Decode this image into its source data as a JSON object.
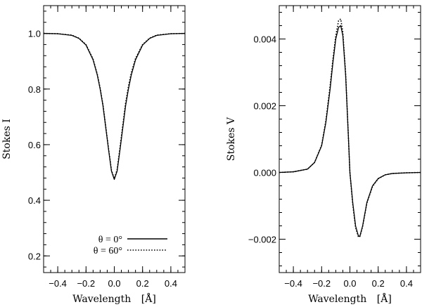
{
  "chart_data": [
    {
      "type": "line",
      "ylabel": "Stokes I",
      "xlabel": "Wavelength",
      "xlabel_unit": "[Å]",
      "xlim": [
        -0.5,
        0.5
      ],
      "ylim": [
        0.14,
        1.1
      ],
      "xticks": [
        -0.4,
        -0.2,
        0.0,
        0.2,
        0.4
      ],
      "xtick_labels": [
        "−0.4",
        "−0.2",
        "0.0",
        "0.2",
        "0.4"
      ],
      "yticks": [
        0.2,
        0.4,
        0.6,
        0.8,
        1.0
      ],
      "ytick_labels": [
        "0.2",
        "0.4",
        "0.6",
        "0.8",
        "1.0"
      ],
      "legend_position": "bottom-right",
      "series": [
        {
          "name": "θ = 0°",
          "style": "solid",
          "x": [
            -0.5,
            -0.4,
            -0.3,
            -0.25,
            -0.2,
            -0.15,
            -0.12,
            -0.1,
            -0.08,
            -0.06,
            -0.04,
            -0.02,
            0.0,
            0.02,
            0.04,
            0.06,
            0.08,
            0.1,
            0.12,
            0.15,
            0.2,
            0.25,
            0.3,
            0.4,
            0.5
          ],
          "values": [
            1.0,
            0.999,
            0.993,
            0.982,
            0.958,
            0.905,
            0.85,
            0.8,
            0.74,
            0.66,
            0.58,
            0.505,
            0.475,
            0.505,
            0.58,
            0.66,
            0.74,
            0.8,
            0.85,
            0.905,
            0.958,
            0.982,
            0.993,
            0.999,
            1.0
          ]
        },
        {
          "name": "θ = 60°",
          "style": "dotted",
          "x": [
            -0.5,
            -0.4,
            -0.3,
            -0.25,
            -0.2,
            -0.15,
            -0.12,
            -0.1,
            -0.08,
            -0.06,
            -0.04,
            -0.02,
            0.0,
            0.02,
            0.04,
            0.06,
            0.08,
            0.1,
            0.12,
            0.15,
            0.2,
            0.25,
            0.3,
            0.4,
            0.5
          ],
          "values": [
            1.0,
            0.999,
            0.994,
            0.983,
            0.96,
            0.908,
            0.853,
            0.803,
            0.743,
            0.663,
            0.583,
            0.508,
            0.478,
            0.51,
            0.588,
            0.67,
            0.75,
            0.81,
            0.858,
            0.91,
            0.96,
            0.983,
            0.994,
            0.999,
            1.0
          ]
        }
      ]
    },
    {
      "type": "line",
      "ylabel": "Stokes V",
      "xlabel": "Wavelength",
      "xlabel_unit": "[Å]",
      "xlim": [
        -0.5,
        0.5
      ],
      "ylim": [
        -0.003,
        0.005
      ],
      "xticks": [
        -0.4,
        -0.2,
        0.0,
        0.2,
        0.4
      ],
      "xtick_labels": [
        "−0.4",
        "−0.2",
        "0.0",
        "0.2",
        "0.4"
      ],
      "yticks": [
        -0.002,
        0.0,
        0.002,
        0.004
      ],
      "ytick_labels": [
        "−0.002",
        "0.000",
        "0.002",
        "0.004"
      ],
      "series": [
        {
          "name": "θ = 0°",
          "style": "solid",
          "x": [
            -0.5,
            -0.4,
            -0.3,
            -0.25,
            -0.2,
            -0.17,
            -0.14,
            -0.12,
            -0.1,
            -0.08,
            -0.065,
            -0.05,
            -0.03,
            -0.01,
            0.0,
            0.02,
            0.04,
            0.06,
            0.07,
            0.09,
            0.12,
            0.16,
            0.2,
            0.25,
            0.3,
            0.4,
            0.5
          ],
          "values": [
            0.0,
            2e-05,
            0.0001,
            0.0003,
            0.0008,
            0.0015,
            0.0025,
            0.0033,
            0.004,
            0.00435,
            0.0044,
            0.0041,
            0.0029,
            0.001,
            0.0,
            -0.0009,
            -0.0016,
            -0.0019,
            -0.00192,
            -0.0016,
            -0.0009,
            -0.0004,
            -0.00018,
            -7e-05,
            -3e-05,
            -1e-05,
            0.0
          ]
        },
        {
          "name": "θ = 60°",
          "style": "dotted",
          "x": [
            -0.5,
            -0.4,
            -0.3,
            -0.25,
            -0.2,
            -0.17,
            -0.14,
            -0.12,
            -0.1,
            -0.08,
            -0.065,
            -0.05,
            -0.03,
            -0.01,
            0.0,
            0.02,
            0.04,
            0.06,
            0.07,
            0.09,
            0.12,
            0.16,
            0.2,
            0.25,
            0.3,
            0.4,
            0.5
          ],
          "values": [
            0.0,
            2e-05,
            0.0001,
            0.0003,
            0.00082,
            0.00155,
            0.0026,
            0.0034,
            0.0041,
            0.00455,
            0.0046,
            0.0042,
            0.00295,
            0.001,
            0.0,
            -0.00095,
            -0.00165,
            -0.00193,
            -0.00193,
            -0.00162,
            -0.00092,
            -0.00042,
            -0.00019,
            -7e-05,
            -3e-05,
            -1e-05,
            0.0
          ]
        }
      ]
    }
  ]
}
